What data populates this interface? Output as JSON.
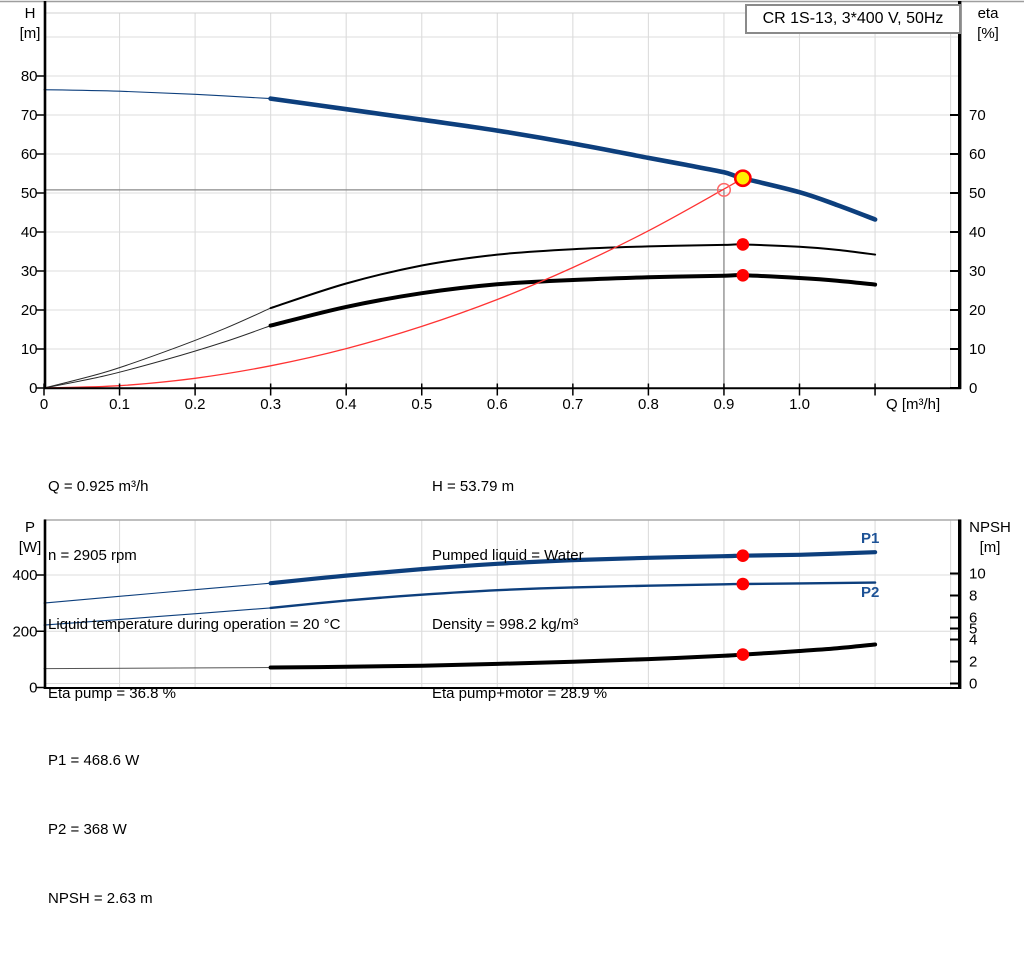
{
  "title_box": {
    "text": "CR 1S-13, 3*400 V, 50Hz"
  },
  "colors": {
    "curve_blue": "#0d3f7d",
    "label_blue": "#1d5296",
    "red": "#ff3333",
    "open_ring_red": "#ff6666",
    "marker_red": "#ff0000",
    "marker_yellow": "#ffee00",
    "grid": "#dcdcdc",
    "crosshair_gray": "#8a8a8a",
    "axis_black": "#000000",
    "frame_gray": "#9e9e9e",
    "inner_frame_gray": "#d0d0d0"
  },
  "chart_data": [
    {
      "type": "line",
      "name": "hq-eta-chart",
      "x_axis": {
        "label": "Q [m³/h]",
        "min": 0,
        "max": 1.213,
        "tick_values": [
          0,
          0.1,
          0.2,
          0.3,
          0.4,
          0.5,
          0.6,
          0.7,
          0.8,
          0.9,
          1.0
        ],
        "tick_labels": [
          "0",
          "0.1",
          "0.2",
          "0.3",
          "0.4",
          "0.5",
          "0.6",
          "0.7",
          "0.8",
          "0.9",
          "1.0"
        ],
        "minor_tick_values": [
          1.1
        ],
        "grid_values": [
          0.1,
          0.2,
          0.3,
          0.4,
          0.5,
          0.6,
          0.7,
          0.8,
          0.9,
          1.0,
          1.1,
          1.2
        ]
      },
      "left_axis": {
        "label_line1": "H",
        "label_line2": "[m]",
        "min": 0,
        "max": 96,
        "ticks": [
          0,
          10,
          20,
          30,
          40,
          50,
          60,
          70,
          80
        ],
        "grid": [
          10,
          20,
          30,
          40,
          50,
          60,
          70,
          80,
          90
        ]
      },
      "right_axis": {
        "label_line1": "eta",
        "label_line2": "[%]",
        "ticks": [
          0,
          10,
          20,
          30,
          40,
          50,
          60,
          70
        ]
      },
      "series": [
        {
          "name": "hq-extension",
          "axis": "H",
          "points": [
            [
              0,
              76.5
            ],
            [
              0.1,
              76.1
            ],
            [
              0.2,
              75.3
            ],
            [
              0.3,
              74.2
            ]
          ]
        },
        {
          "name": "hq",
          "axis": "H",
          "points": [
            [
              0.3,
              74.2
            ],
            [
              0.4,
              71.5
            ],
            [
              0.5,
              68.8
            ],
            [
              0.6,
              66.0
            ],
            [
              0.7,
              62.7
            ],
            [
              0.8,
              59.0
            ],
            [
              0.85,
              57.2
            ],
            [
              0.9,
              55.3
            ],
            [
              0.925,
              53.79
            ],
            [
              1.0,
              50.2
            ],
            [
              1.05,
              46.9
            ],
            [
              1.1,
              43.2
            ]
          ]
        },
        {
          "name": "eta-pump-extension",
          "axis": "eta",
          "points": [
            [
              0,
              0
            ],
            [
              0.08,
              4.0
            ],
            [
              0.16,
              9.3
            ],
            [
              0.24,
              15.3
            ],
            [
              0.3,
              20.5
            ]
          ]
        },
        {
          "name": "eta-pump",
          "axis": "eta",
          "points": [
            [
              0.3,
              20.5
            ],
            [
              0.4,
              26.8
            ],
            [
              0.5,
              31.4
            ],
            [
              0.6,
              34.2
            ],
            [
              0.7,
              35.6
            ],
            [
              0.8,
              36.3
            ],
            [
              0.9,
              36.7
            ],
            [
              0.925,
              36.8
            ],
            [
              1.0,
              36.2
            ],
            [
              1.05,
              35.4
            ],
            [
              1.1,
              34.2
            ]
          ]
        },
        {
          "name": "eta-pump-motor-extension",
          "axis": "eta",
          "points": [
            [
              0,
              0
            ],
            [
              0.08,
              3.1
            ],
            [
              0.16,
              7.2
            ],
            [
              0.24,
              11.9
            ],
            [
              0.3,
              16.0
            ]
          ]
        },
        {
          "name": "eta-pump-motor",
          "axis": "eta",
          "points": [
            [
              0.3,
              16.0
            ],
            [
              0.4,
              20.8
            ],
            [
              0.5,
              24.3
            ],
            [
              0.6,
              26.6
            ],
            [
              0.7,
              27.7
            ],
            [
              0.8,
              28.4
            ],
            [
              0.9,
              28.8
            ],
            [
              0.925,
              28.9
            ],
            [
              1.0,
              28.2
            ],
            [
              1.05,
              27.5
            ],
            [
              1.1,
              26.5
            ]
          ]
        },
        {
          "name": "system-curve",
          "axis": "H",
          "points": [
            [
              0,
              0
            ],
            [
              0.1,
              0.6
            ],
            [
              0.2,
              2.5
            ],
            [
              0.3,
              5.7
            ],
            [
              0.4,
              10.1
            ],
            [
              0.5,
              15.8
            ],
            [
              0.6,
              22.7
            ],
            [
              0.7,
              30.9
            ],
            [
              0.8,
              40.3
            ],
            [
              0.9,
              51.0
            ],
            [
              0.925,
              53.8
            ]
          ]
        }
      ],
      "crosshair": {
        "q": 0.9,
        "h": 50.8
      },
      "markers": [
        {
          "name": "duty-point",
          "type": "duty",
          "q": 0.925,
          "value": 53.79,
          "axis": "H"
        },
        {
          "name": "requested-duty-point",
          "type": "open",
          "q": 0.9,
          "value": 50.8,
          "axis": "H"
        },
        {
          "name": "eta-pump-point",
          "type": "dot",
          "q": 0.925,
          "value": 36.8,
          "axis": "eta"
        },
        {
          "name": "eta-pump-motor-point",
          "type": "dot",
          "q": 0.925,
          "value": 28.9,
          "axis": "eta"
        }
      ]
    },
    {
      "type": "line",
      "name": "power-npsh-chart",
      "left_axis": {
        "label_line1": "P",
        "label_line2": "[W]",
        "ticks": [
          0,
          200,
          400
        ],
        "grid": [
          200,
          400
        ]
      },
      "right_axis": {
        "label_line1": "NPSH",
        "label_line2": "[m]",
        "ticks": [
          0,
          2,
          4,
          5,
          6,
          8,
          10
        ],
        "grid": [
          0
        ]
      },
      "series": [
        {
          "name": "p1-extension",
          "axis": "P",
          "points": [
            [
              0,
              300
            ],
            [
              0.15,
              336
            ],
            [
              0.3,
              371
            ]
          ]
        },
        {
          "name": "p1",
          "axis": "P",
          "points": [
            [
              0.3,
              371
            ],
            [
              0.4,
              398
            ],
            [
              0.5,
              421
            ],
            [
              0.6,
              440
            ],
            [
              0.7,
              453
            ],
            [
              0.8,
              461
            ],
            [
              0.9,
              467
            ],
            [
              0.925,
              468.6
            ],
            [
              1.0,
              472
            ],
            [
              1.1,
              481
            ]
          ]
        },
        {
          "name": "p2-extension",
          "axis": "P",
          "points": [
            [
              0,
              222
            ],
            [
              0.15,
              252
            ],
            [
              0.3,
              283
            ]
          ]
        },
        {
          "name": "p2",
          "axis": "P",
          "points": [
            [
              0.3,
              283
            ],
            [
              0.4,
              309
            ],
            [
              0.5,
              330
            ],
            [
              0.6,
              346
            ],
            [
              0.7,
              356
            ],
            [
              0.8,
              362
            ],
            [
              0.9,
              367
            ],
            [
              0.925,
              368
            ],
            [
              1.0,
              370
            ],
            [
              1.1,
              373
            ]
          ]
        },
        {
          "name": "npsh-extension",
          "axis": "NPSH",
          "points": [
            [
              0,
              1.35
            ],
            [
              0.3,
              1.45
            ]
          ]
        },
        {
          "name": "npsh",
          "axis": "NPSH",
          "points": [
            [
              0.3,
              1.45
            ],
            [
              0.4,
              1.52
            ],
            [
              0.5,
              1.62
            ],
            [
              0.6,
              1.78
            ],
            [
              0.7,
              1.98
            ],
            [
              0.8,
              2.22
            ],
            [
              0.9,
              2.52
            ],
            [
              0.925,
              2.63
            ],
            [
              1.0,
              2.95
            ],
            [
              1.05,
              3.2
            ],
            [
              1.1,
              3.55
            ]
          ]
        }
      ],
      "markers": [
        {
          "name": "p1-point",
          "type": "dot",
          "q": 0.925,
          "value": 468.6,
          "axis": "P"
        },
        {
          "name": "p2-point",
          "type": "dot",
          "q": 0.925,
          "value": 368,
          "axis": "P"
        },
        {
          "name": "npsh-point",
          "type": "dot",
          "q": 0.925,
          "value": 2.63,
          "axis": "NPSH"
        }
      ]
    }
  ],
  "curve_labels": {
    "p1": "P1",
    "p2": "P2"
  },
  "annotations": {
    "mid_left": [
      "Q = 0.925 m³/h",
      "n = 2905 rpm",
      "Liquid temperature during operation = 20 °C",
      "Eta pump = 36.8 %"
    ],
    "mid_right": [
      "H = 53.79 m",
      "Pumped liquid = Water",
      "Density = 998.2 kg/m³",
      "Eta pump+motor = 28.9 %"
    ],
    "bottom": [
      "P1 = 468.6 W",
      "P2 = 368 W",
      "NPSH = 2.63 m"
    ]
  }
}
